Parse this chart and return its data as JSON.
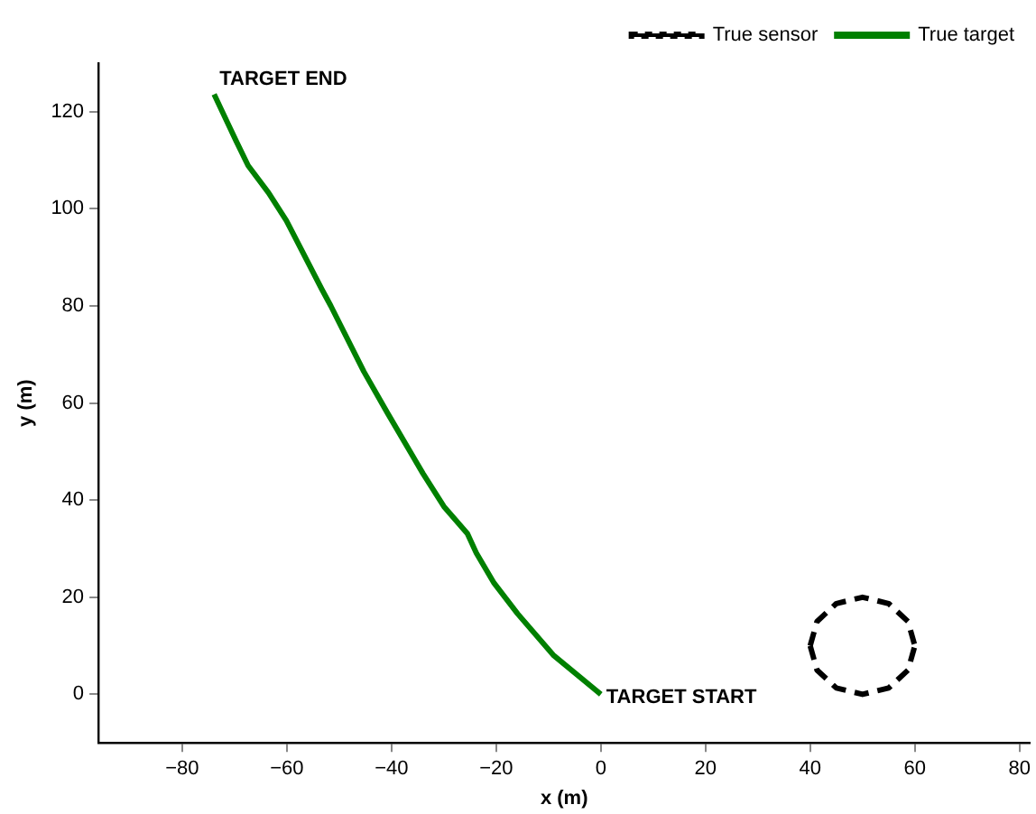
{
  "chart_data": {
    "type": "line",
    "xlabel": "x (m)",
    "ylabel": "y (m)",
    "xlim": [
      -96,
      82
    ],
    "xticks": [
      -80,
      -60,
      -40,
      -20,
      0,
      20,
      40,
      60,
      80
    ],
    "ylim": [
      -10,
      130
    ],
    "yticks": [
      0,
      20,
      40,
      60,
      80,
      100,
      120
    ],
    "grid": false,
    "legend": "top right",
    "marker": "none",
    "series": [
      {
        "name": "True sensor",
        "color": "#000000",
        "line_style": "dashed",
        "x": [
          40,
          41.3,
          45,
          50,
          55,
          58.7,
          60
        ],
        "values": [
          10,
          15,
          18.7,
          20,
          18.7,
          15,
          10
        ]
      },
      {
        "color": "#000000",
        "line_style": "dashed",
        "x": [
          40,
          41.3,
          45,
          50,
          55,
          58.7,
          60
        ],
        "values": [
          10,
          5,
          1.3,
          0,
          1.3,
          5,
          10
        ]
      },
      {
        "name": "True target",
        "color": "#008000",
        "line_style": "solid",
        "x": [
          0,
          -9.1,
          -15.9,
          -20.4,
          -23.8,
          -25.5,
          -30,
          -34,
          -40.8,
          -45.3,
          -51.6,
          -53.3,
          -60.1,
          -63.5,
          -67.4,
          -69.7,
          -73.9
        ],
        "values": [
          0,
          8.1,
          16.6,
          22.9,
          29.1,
          33.1,
          38.7,
          45.5,
          58,
          66.5,
          80,
          83.4,
          97.6,
          103.3,
          108.9,
          114,
          123.6
        ]
      }
    ],
    "annotations": [
      {
        "text": "TARGET END",
        "x": -73.9,
        "y": 123.6
      },
      {
        "text": "TARGET START",
        "x": 0,
        "y": 0
      }
    ]
  }
}
